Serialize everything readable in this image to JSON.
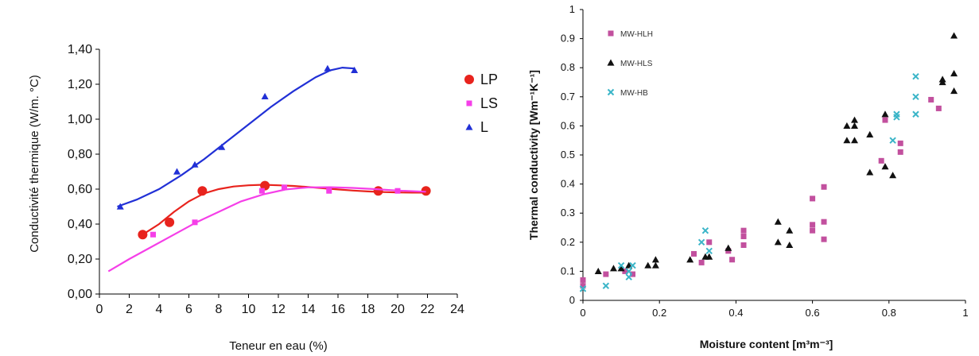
{
  "chart_data": [
    {
      "type": "scatter",
      "title": "",
      "xlabel": "Teneur en eau (%)",
      "ylabel": "Conductivité thermique (W/m. °C)",
      "xlim": [
        0,
        24
      ],
      "ylim": [
        0,
        1.4
      ],
      "x_ticks": [
        "0",
        "2",
        "4",
        "6",
        "8",
        "10",
        "12",
        "14",
        "16",
        "18",
        "20",
        "22",
        "24"
      ],
      "y_ticks": [
        "0,00",
        "0,20",
        "0,40",
        "0,60",
        "0,80",
        "1,00",
        "1,20",
        "1,40"
      ],
      "legend_position": "right",
      "series": [
        {
          "name": "LP",
          "marker": "circle",
          "color": "#e8231d",
          "points": [
            [
              2.9,
              0.34
            ],
            [
              4.7,
              0.41
            ],
            [
              6.9,
              0.59
            ],
            [
              11.1,
              0.62
            ],
            [
              18.7,
              0.59
            ],
            [
              21.9,
              0.59
            ]
          ],
          "trend": [
            [
              2.9,
              0.34
            ],
            [
              4.0,
              0.4
            ],
            [
              5.0,
              0.47
            ],
            [
              6.0,
              0.53
            ],
            [
              7.0,
              0.575
            ],
            [
              8.0,
              0.6
            ],
            [
              9.0,
              0.615
            ],
            [
              10.0,
              0.622
            ],
            [
              11.0,
              0.625
            ],
            [
              12.0,
              0.622
            ],
            [
              13.0,
              0.618
            ],
            [
              14.0,
              0.612
            ],
            [
              15.0,
              0.605
            ],
            [
              16.0,
              0.598
            ],
            [
              17.0,
              0.592
            ],
            [
              18.0,
              0.587
            ],
            [
              19.0,
              0.583
            ],
            [
              20.0,
              0.581
            ],
            [
              21.0,
              0.58
            ],
            [
              21.9,
              0.58
            ]
          ]
        },
        {
          "name": "LS",
          "marker": "square",
          "color": "#f53fe8",
          "points": [
            [
              3.6,
              0.34
            ],
            [
              6.4,
              0.41
            ],
            [
              10.9,
              0.59
            ],
            [
              12.4,
              0.61
            ],
            [
              15.4,
              0.59
            ],
            [
              20.0,
              0.59
            ]
          ],
          "trend": [
            [
              0.6,
              0.13
            ],
            [
              2.0,
              0.2
            ],
            [
              3.5,
              0.27
            ],
            [
              5.0,
              0.34
            ],
            [
              6.5,
              0.41
            ],
            [
              8.0,
              0.47
            ],
            [
              9.5,
              0.53
            ],
            [
              11.0,
              0.57
            ],
            [
              12.5,
              0.598
            ],
            [
              14.0,
              0.61
            ],
            [
              15.5,
              0.611
            ],
            [
              17.0,
              0.607
            ],
            [
              18.5,
              0.6
            ],
            [
              20.0,
              0.592
            ],
            [
              21.9,
              0.585
            ]
          ]
        },
        {
          "name": "L",
          "marker": "triangle",
          "color": "#2130d6",
          "points": [
            [
              1.4,
              0.5
            ],
            [
              5.2,
              0.7
            ],
            [
              6.4,
              0.74
            ],
            [
              8.2,
              0.84
            ],
            [
              11.1,
              1.13
            ],
            [
              15.3,
              1.29
            ],
            [
              17.1,
              1.28
            ]
          ],
          "trend": [
            [
              1.2,
              0.5
            ],
            [
              2.5,
              0.54
            ],
            [
              4.0,
              0.6
            ],
            [
              5.5,
              0.68
            ],
            [
              7.0,
              0.77
            ],
            [
              8.5,
              0.87
            ],
            [
              10.0,
              0.97
            ],
            [
              11.5,
              1.07
            ],
            [
              13.0,
              1.16
            ],
            [
              14.5,
              1.24
            ],
            [
              15.5,
              1.28
            ],
            [
              16.3,
              1.295
            ],
            [
              17.1,
              1.29
            ]
          ]
        }
      ]
    },
    {
      "type": "scatter",
      "title": "",
      "xlabel": "Moisture content [m³m⁻³]",
      "ylabel": "Thermal conductivity [Wm⁻¹K⁻¹]",
      "xlim": [
        0,
        1
      ],
      "ylim": [
        0,
        1
      ],
      "x_ticks": [
        "0",
        "0.2",
        "0.4",
        "0.6",
        "0.8",
        "1"
      ],
      "y_ticks": [
        "0",
        "0.1",
        "0.2",
        "0.3",
        "0.4",
        "0.5",
        "0.6",
        "0.7",
        "0.8",
        "0.9",
        "1"
      ],
      "legend_position": "top-left",
      "series": [
        {
          "name": "MW-HLH",
          "marker": "square",
          "color": "#c2509e",
          "points": [
            [
              0.0,
              0.07
            ],
            [
              0.0,
              0.05
            ],
            [
              0.06,
              0.09
            ],
            [
              0.11,
              0.1
            ],
            [
              0.13,
              0.09
            ],
            [
              0.29,
              0.16
            ],
            [
              0.31,
              0.13
            ],
            [
              0.33,
              0.2
            ],
            [
              0.38,
              0.17
            ],
            [
              0.39,
              0.14
            ],
            [
              0.42,
              0.19
            ],
            [
              0.42,
              0.22
            ],
            [
              0.42,
              0.24
            ],
            [
              0.6,
              0.35
            ],
            [
              0.6,
              0.26
            ],
            [
              0.6,
              0.24
            ],
            [
              0.63,
              0.39
            ],
            [
              0.63,
              0.27
            ],
            [
              0.63,
              0.21
            ],
            [
              0.78,
              0.48
            ],
            [
              0.79,
              0.62
            ],
            [
              0.83,
              0.54
            ],
            [
              0.83,
              0.51
            ],
            [
              0.91,
              0.69
            ],
            [
              0.93,
              0.66
            ]
          ]
        },
        {
          "name": "MW-HLS",
          "marker": "triangle",
          "color": "#111111",
          "points": [
            [
              0.04,
              0.1
            ],
            [
              0.08,
              0.11
            ],
            [
              0.1,
              0.11
            ],
            [
              0.12,
              0.12
            ],
            [
              0.17,
              0.12
            ],
            [
              0.19,
              0.14
            ],
            [
              0.19,
              0.12
            ],
            [
              0.28,
              0.14
            ],
            [
              0.32,
              0.15
            ],
            [
              0.33,
              0.15
            ],
            [
              0.38,
              0.18
            ],
            [
              0.51,
              0.27
            ],
            [
              0.51,
              0.2
            ],
            [
              0.54,
              0.24
            ],
            [
              0.54,
              0.19
            ],
            [
              0.69,
              0.6
            ],
            [
              0.69,
              0.55
            ],
            [
              0.71,
              0.62
            ],
            [
              0.71,
              0.6
            ],
            [
              0.71,
              0.55
            ],
            [
              0.75,
              0.57
            ],
            [
              0.75,
              0.44
            ],
            [
              0.79,
              0.64
            ],
            [
              0.79,
              0.46
            ],
            [
              0.81,
              0.43
            ],
            [
              0.94,
              0.76
            ],
            [
              0.94,
              0.75
            ],
            [
              0.97,
              0.91
            ],
            [
              0.97,
              0.78
            ],
            [
              0.97,
              0.72
            ]
          ]
        },
        {
          "name": "MW-HB",
          "marker": "x",
          "color": "#3bb5c8",
          "points": [
            [
              0.0,
              0.04
            ],
            [
              0.06,
              0.05
            ],
            [
              0.1,
              0.12
            ],
            [
              0.12,
              0.1
            ],
            [
              0.12,
              0.08
            ],
            [
              0.13,
              0.12
            ],
            [
              0.31,
              0.2
            ],
            [
              0.32,
              0.24
            ],
            [
              0.33,
              0.17
            ],
            [
              0.81,
              0.55
            ],
            [
              0.82,
              0.64
            ],
            [
              0.82,
              0.63
            ],
            [
              0.87,
              0.77
            ],
            [
              0.87,
              0.7
            ],
            [
              0.87,
              0.64
            ]
          ]
        }
      ]
    }
  ]
}
